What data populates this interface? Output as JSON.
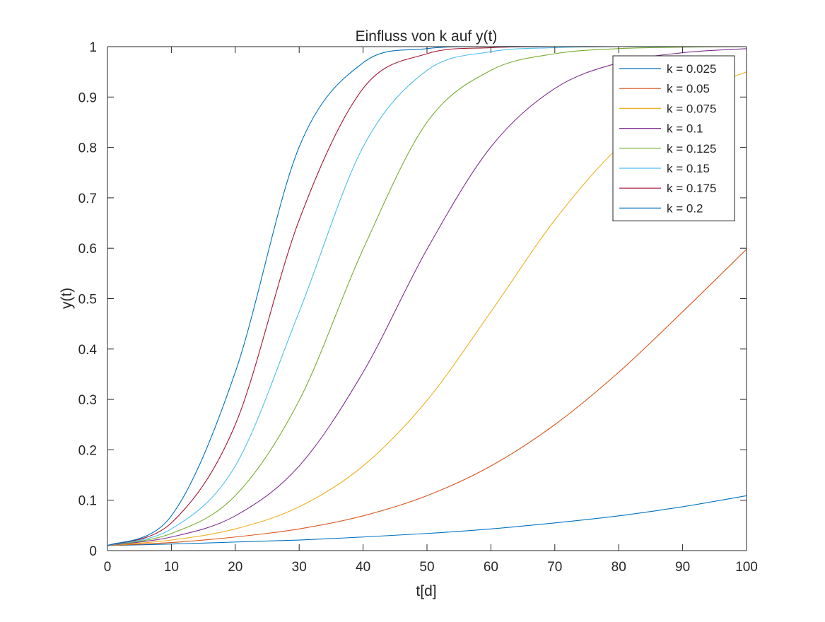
{
  "chart_data": {
    "type": "line",
    "title": "Einfluss von k auf y(t)",
    "xlabel": "t[d]",
    "ylabel": "y(t)",
    "xlim": [
      0,
      100
    ],
    "ylim": [
      0,
      1
    ],
    "xticks": [
      0,
      10,
      20,
      30,
      40,
      50,
      60,
      70,
      80,
      90,
      100
    ],
    "xtick_labels": [
      "0",
      "10",
      "20",
      "30",
      "40",
      "50",
      "60",
      "70",
      "80",
      "90",
      "100"
    ],
    "yticks": [
      0,
      0.1,
      0.2,
      0.3,
      0.4,
      0.5,
      0.6,
      0.7,
      0.8,
      0.9,
      1
    ],
    "ytick_labels": [
      "0",
      "0.1",
      "0.2",
      "0.3",
      "0.4",
      "0.5",
      "0.6",
      "0.7",
      "0.8",
      "0.9",
      "1"
    ],
    "grid": false,
    "legend_position": "top-right",
    "x": [
      0,
      10,
      20,
      30,
      40,
      50,
      60,
      70,
      80,
      90,
      100
    ],
    "series": [
      {
        "name": "k = 0.025",
        "color": "#0072BD",
        "values": [
          0.01,
          0.013,
          0.017,
          0.021,
          0.027,
          0.034,
          0.043,
          0.055,
          0.069,
          0.087,
          0.109
        ]
      },
      {
        "name": "k = 0.05",
        "color": "#D95319",
        "values": [
          0.01,
          0.016,
          0.027,
          0.043,
          0.069,
          0.109,
          0.168,
          0.25,
          0.354,
          0.474,
          0.598
        ]
      },
      {
        "name": "k = 0.075",
        "color": "#EDB120",
        "values": [
          0.01,
          0.021,
          0.043,
          0.087,
          0.168,
          0.298,
          0.474,
          0.656,
          0.801,
          0.897,
          0.95
        ]
      },
      {
        "name": "k = 0.1",
        "color": "#7E2F8E",
        "values": [
          0.01,
          0.027,
          0.069,
          0.168,
          0.354,
          0.598,
          0.801,
          0.917,
          0.968,
          0.988,
          0.996
        ]
      },
      {
        "name": "k = 0.125",
        "color": "#77AC30",
        "values": [
          0.01,
          0.034,
          0.109,
          0.298,
          0.598,
          0.85,
          0.953,
          0.986,
          0.996,
          0.999,
          1.0
        ]
      },
      {
        "name": "k = 0.15",
        "color": "#4DBEEE",
        "values": [
          0.01,
          0.043,
          0.168,
          0.474,
          0.801,
          0.953,
          0.99,
          0.998,
          1.0,
          1.0,
          1.0
        ]
      },
      {
        "name": "k = 0.175",
        "color": "#A2142F",
        "values": [
          0.01,
          0.055,
          0.25,
          0.656,
          0.917,
          0.986,
          0.998,
          1.0,
          1.0,
          1.0,
          1.0
        ]
      },
      {
        "name": "k = 0.2",
        "color": "#0072BD",
        "values": [
          0.01,
          0.069,
          0.354,
          0.801,
          0.968,
          0.996,
          1.0,
          1.0,
          1.0,
          1.0,
          1.0
        ]
      }
    ]
  }
}
